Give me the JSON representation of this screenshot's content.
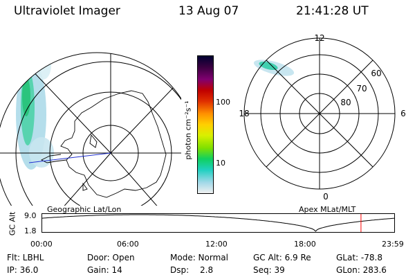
{
  "header": {
    "instrument": "Ultraviolet Imager",
    "date": "13 Aug 07",
    "time": "21:41:28 UT"
  },
  "colorbar": {
    "unit_label": "photon cm⁻²s⁻¹",
    "ticks": [
      "100",
      "10"
    ],
    "colors": [
      "#000030",
      "#3a0040",
      "#800070",
      "#c00000",
      "#e03000",
      "#ff9000",
      "#ffd000",
      "#d8f000",
      "#80e000",
      "#10d060",
      "#20d0c0",
      "#a0d8e8",
      "#f0f0f0"
    ]
  },
  "geo_map": {
    "label": "Geographic Lat/Lon"
  },
  "mag_plot": {
    "label": "Apex MLat/MLT",
    "mlt_labels": {
      "top": "12",
      "right": "6",
      "bottom": "0",
      "left": "18"
    },
    "lat_labels": [
      "60",
      "70",
      "80"
    ]
  },
  "altitude_plot": {
    "ylabel": "GC Alt",
    "yticks": [
      "9.0",
      "1.8"
    ],
    "xticks": [
      "00:00",
      "06:00",
      "12:00",
      "18:00",
      "23:59"
    ],
    "current_time_color": "#ff0000",
    "current_time_hours": 21.69
  },
  "info_row1": {
    "filter": "Flt: LBHL",
    "door": "Door: Open",
    "mode": "Mode: Normal",
    "gc_alt": "GC Alt: 6.9 Re",
    "glat": "GLat: -78.8"
  },
  "info_row2": {
    "ip": "IP: 36.0",
    "gain": "Gain: 14",
    "dsp_label": "Dsp:",
    "dsp_value": "2.8",
    "seq": "Seq: 39",
    "glon": "GLon: 283.6"
  }
}
